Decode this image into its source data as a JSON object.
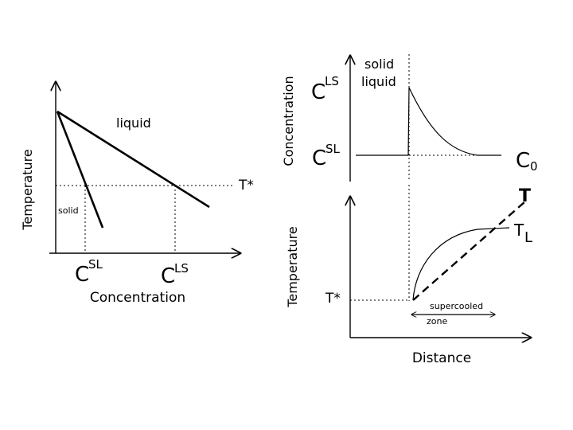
{
  "left_diagram": {
    "y_axis_label": "Temperature",
    "x_axis_label": "Concentration",
    "liquid_label": "liquid",
    "solid_label": "solid",
    "t_star_label": "T*",
    "c_sl": {
      "base": "C",
      "sup": "SL"
    },
    "c_ls": {
      "base": "C",
      "sup": "LS"
    }
  },
  "right_top": {
    "y_axis_label": "Concentration",
    "solid_label": "solid",
    "liquid_label": "liquid",
    "c_ls": {
      "base": "C",
      "sup": "LS"
    },
    "c_sl": {
      "base": "C",
      "sup": "SL"
    },
    "c0": {
      "base": "C",
      "sub": "0"
    }
  },
  "right_bottom": {
    "y_axis_label": "Temperature",
    "x_axis_label": "Distance",
    "t_label": "T",
    "tl": {
      "base": "T",
      "sub": "L"
    },
    "t_star_label": "T*",
    "zone_line1": "supercooled",
    "zone_line2": "zone"
  }
}
